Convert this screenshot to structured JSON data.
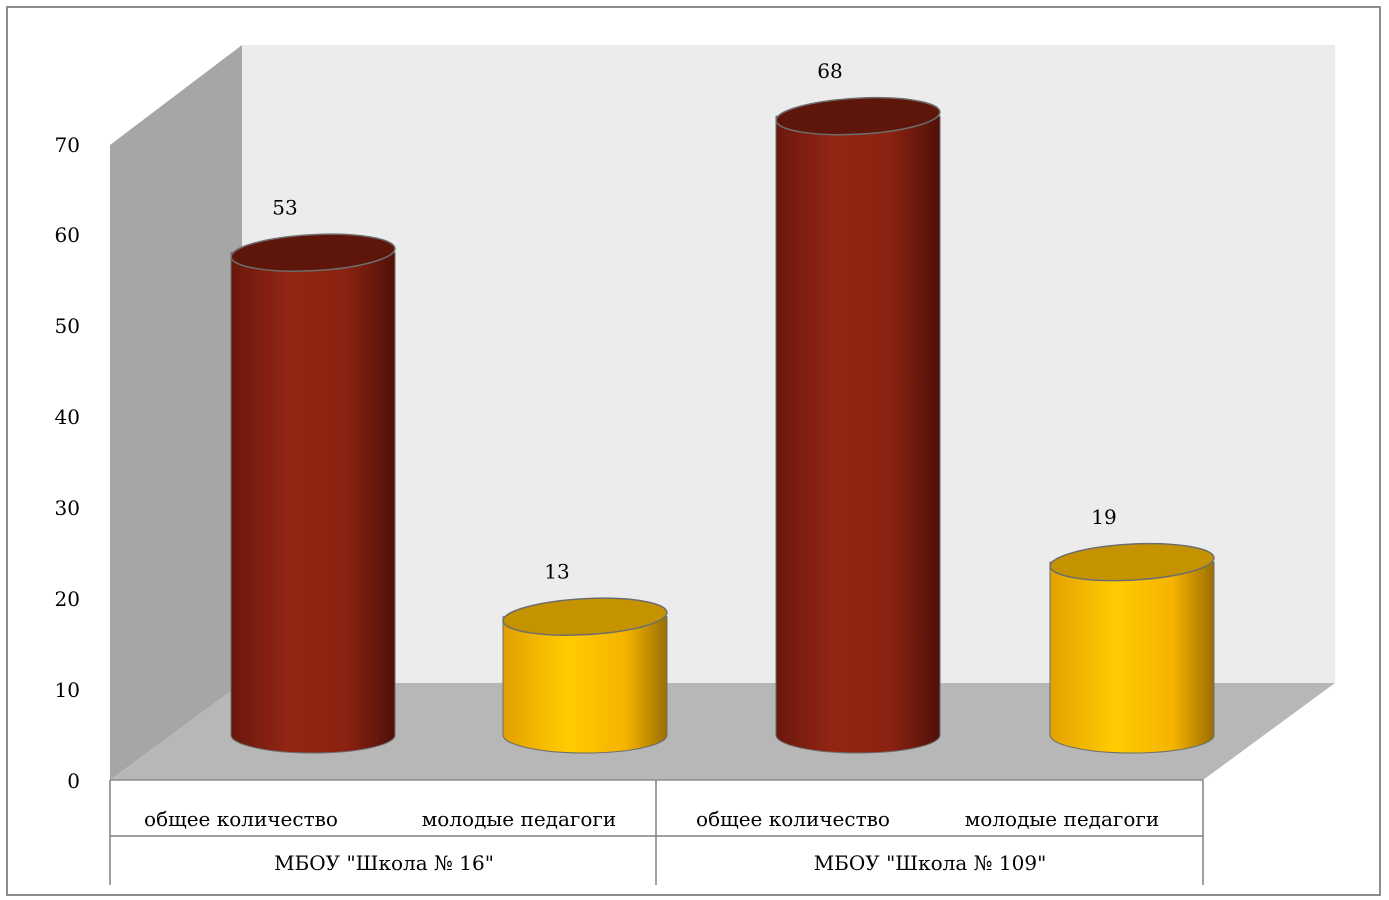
{
  "chart_data": {
    "type": "bar",
    "style": "3d-cylinder",
    "title": "",
    "xlabel": "",
    "ylabel": "",
    "ylim": [
      0,
      70
    ],
    "yticks": [
      "0",
      "10",
      "20",
      "30",
      "40",
      "50",
      "60",
      "70"
    ],
    "grid": false,
    "legend": "none",
    "groups": [
      "МБОУ \"Школа № 16\"",
      "МБОУ \"Школа № 109\""
    ],
    "categories": [
      "общее количество",
      "молодые педагоги",
      "общее количество",
      "молодые педагоги"
    ],
    "values": [
      53,
      13,
      68,
      19
    ],
    "data_labels": [
      "53",
      "13",
      "68",
      "19"
    ],
    "colors": {
      "total": "#8b2211",
      "young": "#ffc000",
      "back_wall": "#ececec",
      "side_wall": "#a6a6a6",
      "floor": "#b7b7b7"
    }
  }
}
